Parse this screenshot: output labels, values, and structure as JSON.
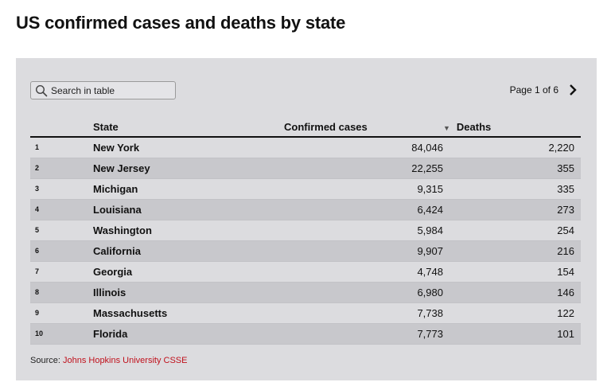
{
  "page": {
    "title": "US confirmed cases and deaths by state"
  },
  "search": {
    "placeholder": "Search in table",
    "value": ""
  },
  "pagination": {
    "label": "Page 1 of 6"
  },
  "table": {
    "columns": {
      "rank": "",
      "state": "State",
      "cases": "Confirmed cases",
      "deaths": "Deaths"
    },
    "sort_indicator": "▼",
    "rows": [
      {
        "rank": "1",
        "state": "New York",
        "cases": "84,046",
        "deaths": "2,220"
      },
      {
        "rank": "2",
        "state": "New Jersey",
        "cases": "22,255",
        "deaths": "355"
      },
      {
        "rank": "3",
        "state": "Michigan",
        "cases": "9,315",
        "deaths": "335"
      },
      {
        "rank": "4",
        "state": "Louisiana",
        "cases": "6,424",
        "deaths": "273"
      },
      {
        "rank": "5",
        "state": "Washington",
        "cases": "5,984",
        "deaths": "254"
      },
      {
        "rank": "6",
        "state": "California",
        "cases": "9,907",
        "deaths": "216"
      },
      {
        "rank": "7",
        "state": "Georgia",
        "cases": "4,748",
        "deaths": "154"
      },
      {
        "rank": "8",
        "state": "Illinois",
        "cases": "6,980",
        "deaths": "146"
      },
      {
        "rank": "9",
        "state": "Massachusetts",
        "cases": "7,738",
        "deaths": "122"
      },
      {
        "rank": "10",
        "state": "Florida",
        "cases": "7,773",
        "deaths": "101"
      }
    ]
  },
  "source": {
    "prefix": "Source: ",
    "link_text": "Johns Hopkins University CSSE"
  },
  "colors": {
    "panel_bg": "#dcdcdf",
    "row_alt_bg": "#c8c8cc",
    "link": "#c0111c"
  },
  "icons": {
    "search": "search-icon",
    "next": "chevron-right-icon",
    "sort": "sort-desc-icon"
  }
}
